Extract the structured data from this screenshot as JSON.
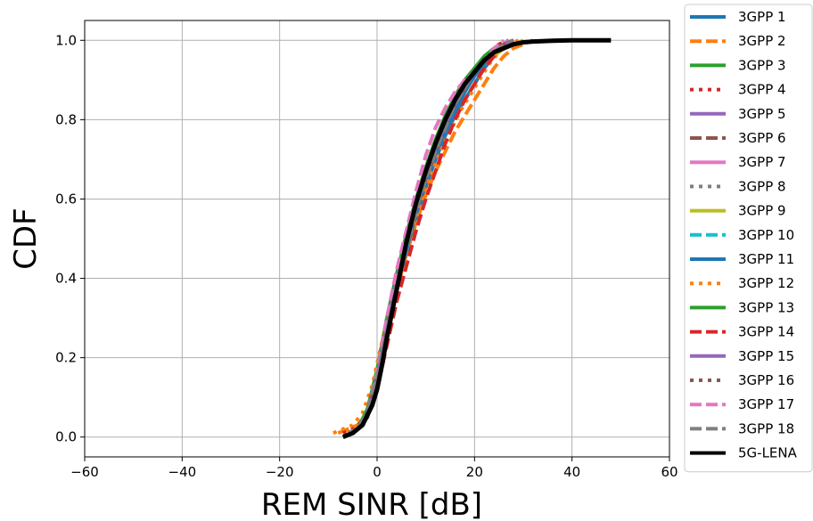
{
  "chart_data": {
    "type": "line",
    "title": "",
    "xlabel": "REM SINR [dB]",
    "ylabel": "CDF",
    "xlim": [
      -60,
      60
    ],
    "ylim": [
      -0.05,
      1.05
    ],
    "xticks": [
      -60,
      -40,
      -20,
      0,
      20,
      40,
      60
    ],
    "xtick_labels": [
      "−60",
      "−40",
      "−20",
      "0",
      "20",
      "40",
      "60"
    ],
    "yticks": [
      0.0,
      0.2,
      0.4,
      0.6,
      0.8,
      1.0
    ],
    "ytick_labels": [
      "0.0",
      "0.2",
      "0.4",
      "0.6",
      "0.8",
      "1.0"
    ],
    "grid": true,
    "legend_position": "outside-right",
    "series": [
      {
        "name": "3GPP 1",
        "color": "#1f77b4",
        "dash": "solid",
        "x": [
          -6,
          -4,
          -2,
          0,
          2,
          4,
          6,
          8,
          10,
          12,
          14,
          16,
          18,
          20,
          22,
          24,
          26,
          28
        ],
        "y": [
          0.01,
          0.02,
          0.05,
          0.12,
          0.25,
          0.37,
          0.46,
          0.55,
          0.63,
          0.7,
          0.76,
          0.81,
          0.85,
          0.89,
          0.93,
          0.96,
          0.99,
          1.0
        ]
      },
      {
        "name": "3GPP 2",
        "color": "#ff7f0e",
        "dash": "dashed",
        "x": [
          -8,
          -6,
          -4,
          -2,
          0,
          2,
          4,
          6,
          8,
          10,
          12,
          14,
          16,
          18,
          20,
          22,
          24,
          26,
          28,
          30,
          32
        ],
        "y": [
          0.01,
          0.02,
          0.03,
          0.06,
          0.14,
          0.26,
          0.37,
          0.46,
          0.54,
          0.61,
          0.67,
          0.72,
          0.77,
          0.81,
          0.85,
          0.89,
          0.93,
          0.96,
          0.98,
          0.99,
          1.0
        ]
      },
      {
        "name": "3GPP 3",
        "color": "#2ca02c",
        "dash": "solid",
        "x": [
          -6,
          -4,
          -2,
          0,
          2,
          4,
          6,
          8,
          10,
          12,
          14,
          16,
          18,
          20,
          22,
          24,
          26,
          28
        ],
        "y": [
          0.01,
          0.02,
          0.07,
          0.17,
          0.3,
          0.41,
          0.51,
          0.6,
          0.68,
          0.75,
          0.81,
          0.86,
          0.9,
          0.93,
          0.96,
          0.98,
          0.99,
          1.0
        ]
      },
      {
        "name": "3GPP 4",
        "color": "#d62728",
        "dash": "dotted",
        "x": [
          -7,
          -5,
          -3,
          -1,
          1,
          3,
          5,
          7,
          9,
          11,
          13,
          15,
          17,
          19,
          21,
          23,
          25,
          27
        ],
        "y": [
          0.01,
          0.02,
          0.04,
          0.1,
          0.21,
          0.33,
          0.43,
          0.52,
          0.6,
          0.68,
          0.74,
          0.8,
          0.85,
          0.89,
          0.93,
          0.96,
          0.99,
          1.0
        ]
      },
      {
        "name": "3GPP 5",
        "color": "#9467bd",
        "dash": "solid",
        "x": [
          -6,
          -4,
          -2,
          0,
          2,
          4,
          6,
          8,
          10,
          12,
          14,
          16,
          18,
          20,
          22,
          24,
          26,
          28
        ],
        "y": [
          0.01,
          0.02,
          0.06,
          0.15,
          0.27,
          0.39,
          0.48,
          0.57,
          0.65,
          0.72,
          0.78,
          0.84,
          0.88,
          0.92,
          0.95,
          0.97,
          0.99,
          1.0
        ]
      },
      {
        "name": "3GPP 6",
        "color": "#8c564b",
        "dash": "dashed",
        "x": [
          -6,
          -4,
          -2,
          0,
          2,
          4,
          6,
          8,
          10,
          12,
          14,
          16,
          18,
          20,
          22,
          24,
          26,
          28
        ],
        "y": [
          0.01,
          0.02,
          0.06,
          0.14,
          0.27,
          0.38,
          0.48,
          0.57,
          0.65,
          0.72,
          0.78,
          0.83,
          0.88,
          0.92,
          0.95,
          0.97,
          0.99,
          1.0
        ]
      },
      {
        "name": "3GPP 7",
        "color": "#e377c2",
        "dash": "solid",
        "x": [
          -6,
          -4,
          -2,
          0,
          2,
          4,
          6,
          8,
          10,
          12,
          14,
          16,
          18,
          20,
          22,
          24,
          26,
          27
        ],
        "y": [
          0.01,
          0.02,
          0.06,
          0.15,
          0.28,
          0.4,
          0.5,
          0.59,
          0.67,
          0.74,
          0.8,
          0.85,
          0.89,
          0.92,
          0.94,
          0.96,
          0.99,
          1.0
        ]
      },
      {
        "name": "3GPP 8",
        "color": "#7f7f7f",
        "dash": "dotted",
        "x": [
          -6,
          -4,
          -2,
          0,
          2,
          4,
          6,
          8,
          10,
          12,
          14,
          16,
          18,
          20,
          22,
          24,
          26,
          28
        ],
        "y": [
          0.01,
          0.02,
          0.06,
          0.15,
          0.27,
          0.38,
          0.48,
          0.57,
          0.65,
          0.72,
          0.78,
          0.84,
          0.88,
          0.92,
          0.95,
          0.97,
          0.99,
          1.0
        ]
      },
      {
        "name": "3GPP 9",
        "color": "#bcbd22",
        "dash": "solid",
        "x": [
          -6,
          -4,
          -2,
          0,
          2,
          4,
          6,
          8,
          10,
          12,
          14,
          16,
          18,
          20,
          22,
          24,
          26,
          28,
          30
        ],
        "y": [
          0.01,
          0.02,
          0.06,
          0.15,
          0.27,
          0.38,
          0.47,
          0.56,
          0.64,
          0.71,
          0.77,
          0.82,
          0.87,
          0.91,
          0.94,
          0.96,
          0.98,
          0.99,
          1.0
        ]
      },
      {
        "name": "3GPP 10",
        "color": "#17becf",
        "dash": "dashed",
        "x": [
          -6,
          -4,
          -2,
          0,
          2,
          4,
          6,
          8,
          10,
          12,
          14,
          16,
          18,
          20,
          22,
          24,
          26,
          28
        ],
        "y": [
          0.01,
          0.02,
          0.06,
          0.15,
          0.27,
          0.38,
          0.48,
          0.57,
          0.65,
          0.72,
          0.78,
          0.84,
          0.88,
          0.92,
          0.95,
          0.97,
          0.99,
          1.0
        ]
      },
      {
        "name": "3GPP 11",
        "color": "#1f77b4",
        "dash": "solid",
        "x": [
          -6,
          -4,
          -2,
          0,
          2,
          4,
          6,
          8,
          10,
          12,
          14,
          16,
          18,
          20,
          22,
          24,
          26,
          28
        ],
        "y": [
          0.01,
          0.02,
          0.05,
          0.13,
          0.26,
          0.38,
          0.47,
          0.56,
          0.64,
          0.71,
          0.77,
          0.82,
          0.87,
          0.91,
          0.94,
          0.97,
          0.99,
          1.0
        ]
      },
      {
        "name": "3GPP 12",
        "color": "#ff7f0e",
        "dash": "dotted",
        "x": [
          -9,
          -7,
          -5,
          -3,
          -1,
          1,
          3,
          5,
          7,
          9,
          11,
          13,
          15,
          17,
          19,
          21,
          23,
          25,
          27,
          29
        ],
        "y": [
          0.01,
          0.02,
          0.03,
          0.06,
          0.13,
          0.24,
          0.35,
          0.44,
          0.52,
          0.6,
          0.66,
          0.72,
          0.77,
          0.82,
          0.86,
          0.9,
          0.94,
          0.97,
          0.99,
          1.0
        ]
      },
      {
        "name": "3GPP 13",
        "color": "#2ca02c",
        "dash": "solid",
        "x": [
          -6,
          -4,
          -2,
          0,
          2,
          4,
          6,
          8,
          10,
          12,
          14,
          16,
          18,
          20,
          22,
          24,
          26,
          28
        ],
        "y": [
          0.01,
          0.02,
          0.07,
          0.16,
          0.29,
          0.4,
          0.5,
          0.59,
          0.67,
          0.74,
          0.8,
          0.85,
          0.89,
          0.93,
          0.95,
          0.97,
          0.99,
          1.0
        ]
      },
      {
        "name": "3GPP 14",
        "color": "#d62728",
        "dash": "dashed",
        "x": [
          -6,
          -4,
          -2,
          0,
          2,
          4,
          6,
          8,
          10,
          12,
          14,
          16,
          18,
          20,
          22,
          24,
          26,
          28
        ],
        "y": [
          0.01,
          0.02,
          0.05,
          0.12,
          0.23,
          0.34,
          0.43,
          0.52,
          0.6,
          0.67,
          0.74,
          0.8,
          0.85,
          0.89,
          0.93,
          0.96,
          0.99,
          1.0
        ]
      },
      {
        "name": "3GPP 15",
        "color": "#9467bd",
        "dash": "solid",
        "x": [
          -6,
          -4,
          -2,
          0,
          2,
          4,
          6,
          8,
          10,
          12,
          14,
          16,
          18,
          20,
          22,
          24,
          26,
          28
        ],
        "y": [
          0.01,
          0.02,
          0.06,
          0.15,
          0.28,
          0.39,
          0.49,
          0.58,
          0.66,
          0.73,
          0.79,
          0.84,
          0.88,
          0.92,
          0.95,
          0.97,
          0.99,
          1.0
        ]
      },
      {
        "name": "3GPP 16",
        "color": "#8c564b",
        "dash": "dotted",
        "x": [
          -6,
          -4,
          -2,
          0,
          2,
          4,
          6,
          8,
          10,
          12,
          14,
          16,
          18,
          20,
          22,
          24,
          26,
          28
        ],
        "y": [
          0.01,
          0.02,
          0.06,
          0.15,
          0.27,
          0.38,
          0.48,
          0.57,
          0.65,
          0.72,
          0.78,
          0.84,
          0.88,
          0.92,
          0.95,
          0.97,
          0.99,
          1.0
        ]
      },
      {
        "name": "3GPP 17",
        "color": "#e377c2",
        "dash": "dashed",
        "x": [
          -6,
          -4,
          -2,
          0,
          2,
          4,
          6,
          8,
          10,
          12,
          14,
          16,
          18,
          20,
          22,
          24,
          26
        ],
        "y": [
          0.01,
          0.02,
          0.06,
          0.16,
          0.3,
          0.42,
          0.52,
          0.62,
          0.71,
          0.78,
          0.83,
          0.87,
          0.9,
          0.92,
          0.95,
          0.98,
          1.0
        ]
      },
      {
        "name": "3GPP 18",
        "color": "#7f7f7f",
        "dash": "dashed",
        "x": [
          -6,
          -4,
          -2,
          0,
          2,
          4,
          6,
          8,
          10,
          12,
          14,
          16,
          18,
          20,
          22,
          24,
          26,
          28
        ],
        "y": [
          0.01,
          0.02,
          0.06,
          0.15,
          0.27,
          0.38,
          0.48,
          0.57,
          0.65,
          0.72,
          0.78,
          0.84,
          0.88,
          0.92,
          0.95,
          0.97,
          0.99,
          1.0
        ]
      },
      {
        "name": "5G-LENA",
        "color": "#000000",
        "dash": "solid",
        "x": [
          -7,
          -5,
          -3,
          -1,
          0,
          1,
          2,
          4,
          6,
          8,
          10,
          12,
          14,
          16,
          18,
          20,
          22,
          24,
          26,
          28,
          30,
          32,
          36,
          40,
          44,
          48
        ],
        "y": [
          0.0,
          0.01,
          0.03,
          0.08,
          0.12,
          0.18,
          0.25,
          0.37,
          0.49,
          0.59,
          0.67,
          0.74,
          0.8,
          0.85,
          0.89,
          0.92,
          0.95,
          0.97,
          0.98,
          0.99,
          0.995,
          0.997,
          0.999,
          1.0,
          1.0,
          1.0
        ]
      }
    ]
  }
}
